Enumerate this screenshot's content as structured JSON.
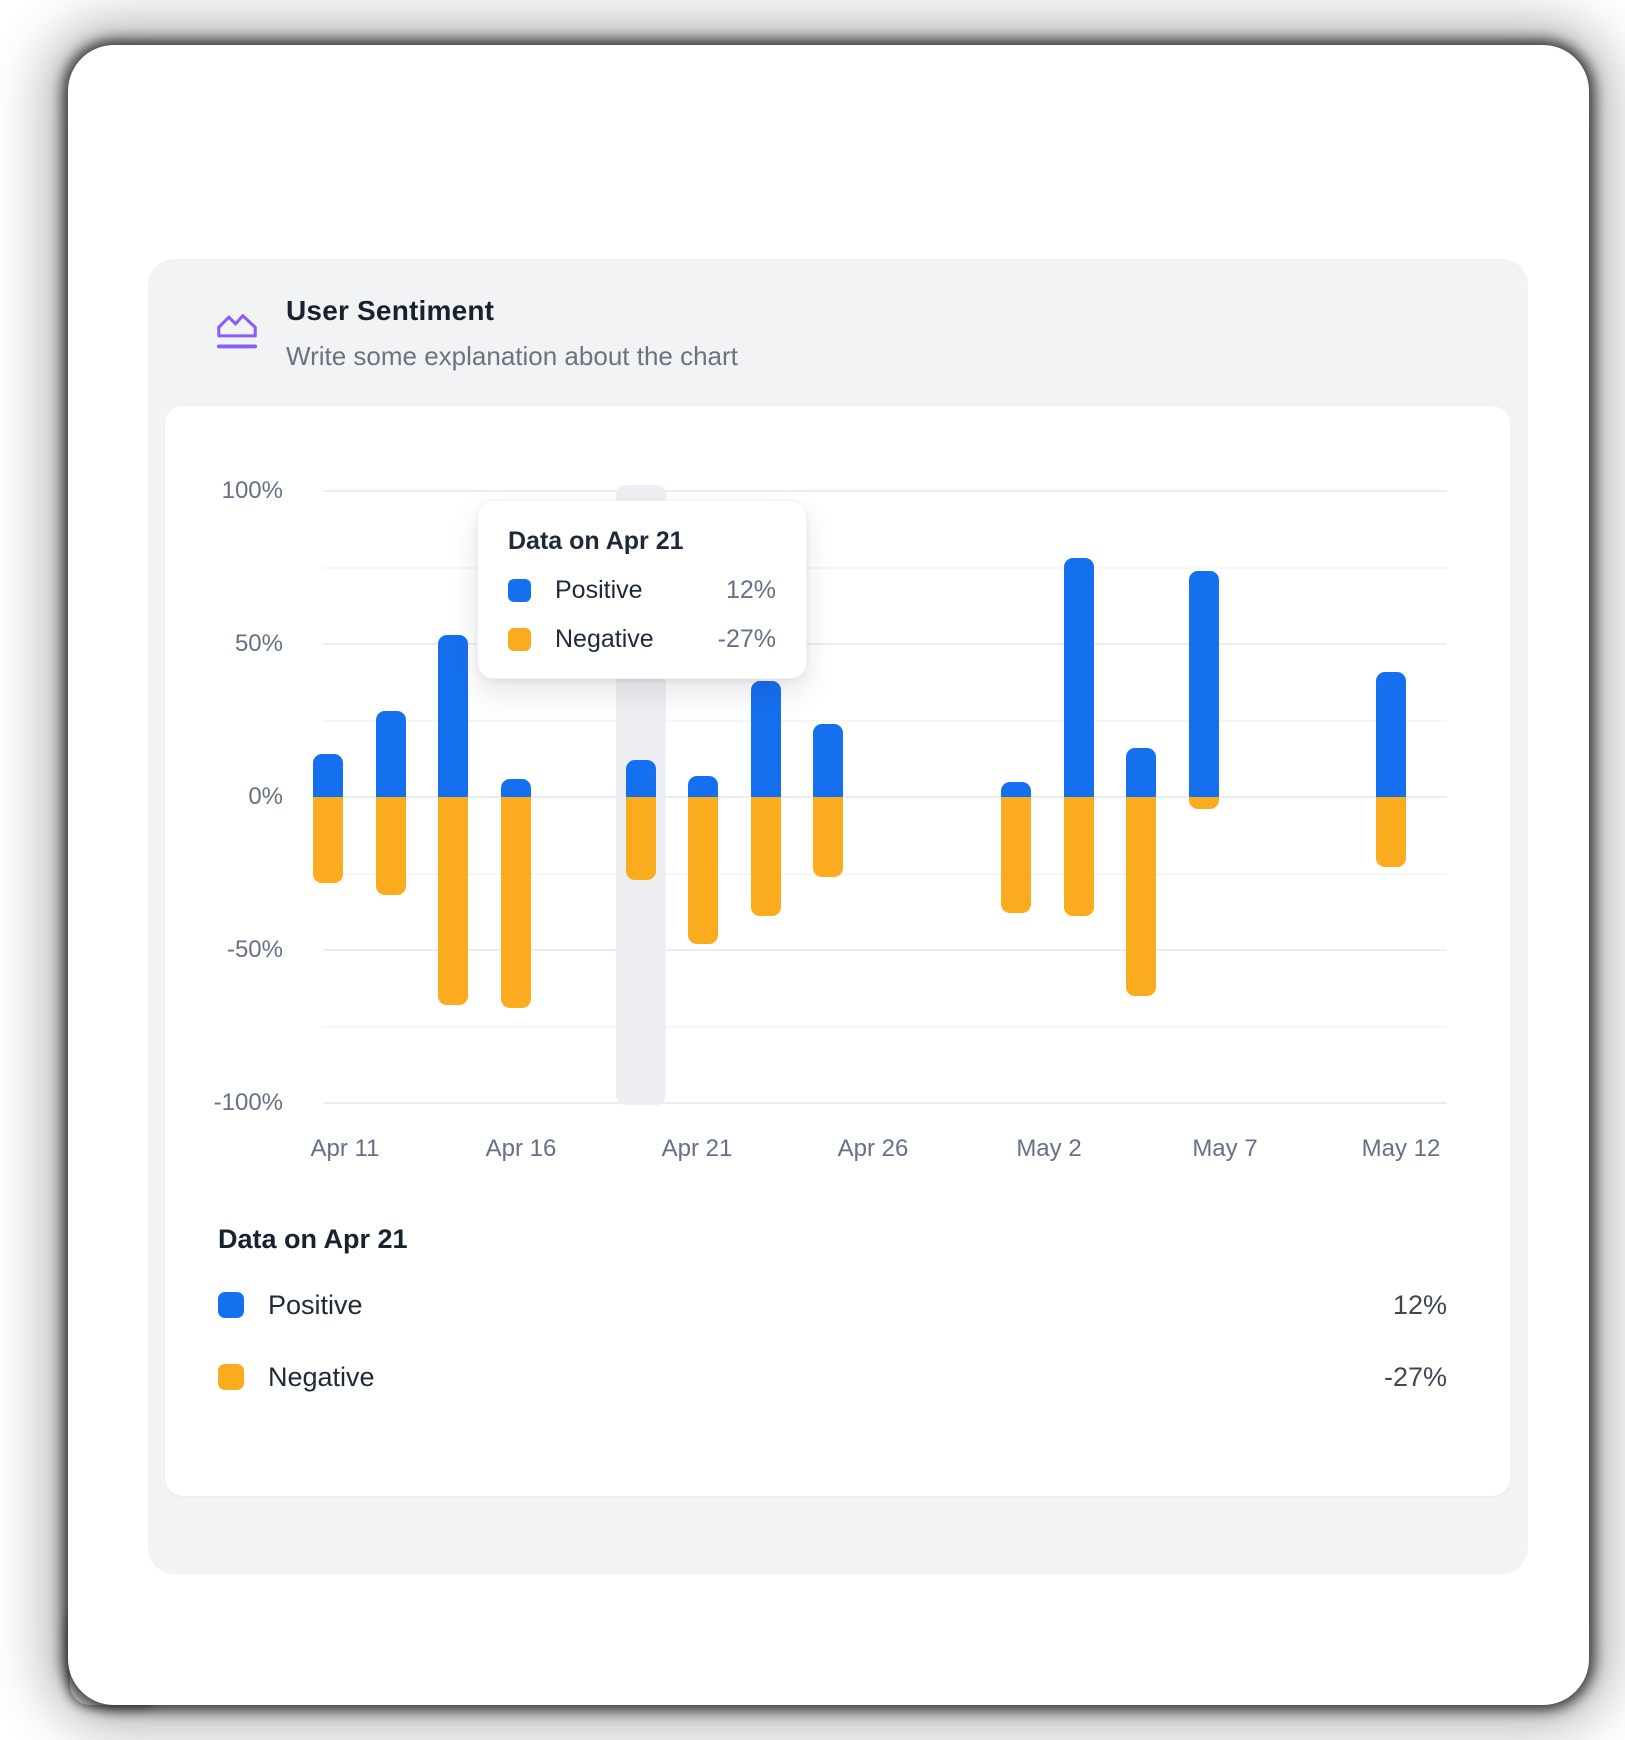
{
  "header": {
    "title": "User Sentiment",
    "subtitle": "Write some explanation about the chart",
    "icon": "area-chart-icon"
  },
  "colors": {
    "positive": "#1570EF",
    "negative": "#FBAB1E",
    "icon_accent": "#8B5CF6",
    "hover_band": "#EDEFF2",
    "axis_text": "#667085",
    "title_text": "#18222F",
    "subtitle_text": "#6B7280",
    "tooltip_value_text": "#667085",
    "legend_value_text": "#3F4754"
  },
  "chart_data": {
    "type": "bar",
    "stacked": true,
    "title": "User Sentiment",
    "unit": "%",
    "grid": true,
    "y_axis": {
      "min": -100,
      "max": 100,
      "tick_step": 50,
      "minor_step": 25,
      "tick_labels": [
        "100%",
        "50%",
        "0%",
        "-50%",
        "-100%"
      ]
    },
    "x_axis": {
      "labels": [
        "Apr 11",
        "Apr 16",
        "Apr 21",
        "Apr 26",
        "May 2",
        "May 7",
        "May 12"
      ]
    },
    "series": [
      {
        "name": "Positive"
      },
      {
        "name": "Negative"
      }
    ],
    "hovered_slot": 5,
    "bars": [
      {
        "slot": 0,
        "positive": 14,
        "negative": -28
      },
      {
        "slot": 1,
        "positive": 28,
        "negative": -32
      },
      {
        "slot": 2,
        "positive": 53,
        "negative": -68
      },
      {
        "slot": 3,
        "positive": 6,
        "negative": -69
      },
      {
        "slot": 5,
        "positive": 12,
        "negative": -27,
        "hovered": true
      },
      {
        "slot": 6,
        "positive": 7,
        "negative": -48
      },
      {
        "slot": 7,
        "positive": 38,
        "negative": -39
      },
      {
        "slot": 8,
        "positive": 24,
        "negative": -26
      },
      {
        "slot": 11,
        "positive": 5,
        "negative": -38
      },
      {
        "slot": 12,
        "positive": 78,
        "negative": -39
      },
      {
        "slot": 13,
        "positive": 16,
        "negative": -65
      },
      {
        "slot": 14,
        "positive": 74,
        "negative": -4
      },
      {
        "slot": 17,
        "positive": 41,
        "negative": -23
      }
    ]
  },
  "tooltip": {
    "title": "Data on Apr 21",
    "rows": [
      {
        "label": "Positive",
        "value": "12%"
      },
      {
        "label": "Negative",
        "value": "-27%"
      }
    ]
  },
  "legend": {
    "title": "Data on Apr 21",
    "rows": [
      {
        "label": "Positive",
        "value": "12%"
      },
      {
        "label": "Negative",
        "value": "-27%"
      }
    ]
  }
}
